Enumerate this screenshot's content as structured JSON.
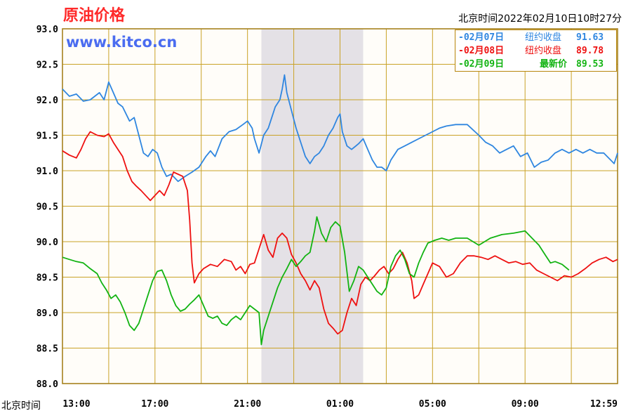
{
  "header": {
    "title": "原油价格",
    "watermark": "www.kitco.cn",
    "timestamp": "北京时间2022年02月10日10时27分"
  },
  "legend": {
    "items": [
      {
        "date": "-02月07日",
        "label": "纽约收盘",
        "value": "91.63",
        "color": "#2f86e0"
      },
      {
        "date": "-02月08日",
        "label": "纽约收盘",
        "value": "89.78",
        "color": "#ee1111"
      },
      {
        "date": "-02月09日",
        "label": "最新价",
        "value": "89.53",
        "color": "#12b312"
      }
    ]
  },
  "chart_data": {
    "type": "line",
    "title": "原油价格",
    "xlabel": "北京时间",
    "ylabel": "",
    "ylim": [
      88.0,
      93.0
    ],
    "y_ticks": [
      "93.0",
      "92.5",
      "92.0",
      "91.5",
      "91.0",
      "90.5",
      "90.0",
      "89.5",
      "89.0",
      "88.5",
      "88.0"
    ],
    "x_ticks": [
      "13:00",
      "17:00",
      "21:00",
      "01:00",
      "05:00",
      "09:00",
      "12:59"
    ],
    "x_range_hours": [
      0,
      24
    ],
    "shaded_band_hours": [
      8.6,
      13.0
    ],
    "grid": true,
    "series": [
      {
        "name": "02月07日 纽约收盘 91.63",
        "color": "#2f86e0",
        "points": [
          [
            0.0,
            92.15
          ],
          [
            0.3,
            92.05
          ],
          [
            0.6,
            92.08
          ],
          [
            0.9,
            91.98
          ],
          [
            1.2,
            92.0
          ],
          [
            1.6,
            92.1
          ],
          [
            1.8,
            92.0
          ],
          [
            2.0,
            92.25
          ],
          [
            2.2,
            92.1
          ],
          [
            2.4,
            91.95
          ],
          [
            2.6,
            91.9
          ],
          [
            2.9,
            91.7
          ],
          [
            3.1,
            91.75
          ],
          [
            3.3,
            91.5
          ],
          [
            3.5,
            91.25
          ],
          [
            3.7,
            91.2
          ],
          [
            3.9,
            91.3
          ],
          [
            4.1,
            91.25
          ],
          [
            4.3,
            91.05
          ],
          [
            4.5,
            90.92
          ],
          [
            4.7,
            90.95
          ],
          [
            5.0,
            90.85
          ],
          [
            5.3,
            90.92
          ],
          [
            5.6,
            90.98
          ],
          [
            5.9,
            91.05
          ],
          [
            6.2,
            91.2
          ],
          [
            6.4,
            91.28
          ],
          [
            6.6,
            91.2
          ],
          [
            6.9,
            91.45
          ],
          [
            7.2,
            91.55
          ],
          [
            7.5,
            91.58
          ],
          [
            7.8,
            91.65
          ],
          [
            8.0,
            91.7
          ],
          [
            8.2,
            91.6
          ],
          [
            8.3,
            91.45
          ],
          [
            8.5,
            91.25
          ],
          [
            8.7,
            91.5
          ],
          [
            8.9,
            91.6
          ],
          [
            9.0,
            91.7
          ],
          [
            9.2,
            91.9
          ],
          [
            9.4,
            92.0
          ],
          [
            9.5,
            92.15
          ],
          [
            9.6,
            92.35
          ],
          [
            9.7,
            92.1
          ],
          [
            9.9,
            91.85
          ],
          [
            10.1,
            91.6
          ],
          [
            10.3,
            91.4
          ],
          [
            10.5,
            91.2
          ],
          [
            10.7,
            91.1
          ],
          [
            10.9,
            91.2
          ],
          [
            11.1,
            91.25
          ],
          [
            11.3,
            91.35
          ],
          [
            11.5,
            91.5
          ],
          [
            11.7,
            91.6
          ],
          [
            11.9,
            91.75
          ],
          [
            12.0,
            91.8
          ],
          [
            12.1,
            91.55
          ],
          [
            12.3,
            91.35
          ],
          [
            12.5,
            91.3
          ],
          [
            12.8,
            91.38
          ],
          [
            13.0,
            91.45
          ],
          [
            13.2,
            91.3
          ],
          [
            13.4,
            91.15
          ],
          [
            13.6,
            91.05
          ],
          [
            13.8,
            91.05
          ],
          [
            14.0,
            91.0
          ],
          [
            14.2,
            91.15
          ],
          [
            14.5,
            91.3
          ],
          [
            14.8,
            91.35
          ],
          [
            15.1,
            91.4
          ],
          [
            15.4,
            91.45
          ],
          [
            15.7,
            91.5
          ],
          [
            16.0,
            91.55
          ],
          [
            16.3,
            91.6
          ],
          [
            16.6,
            91.63
          ],
          [
            17.0,
            91.65
          ],
          [
            17.5,
            91.65
          ],
          [
            18.0,
            91.5
          ],
          [
            18.3,
            91.4
          ],
          [
            18.6,
            91.35
          ],
          [
            18.9,
            91.25
          ],
          [
            19.2,
            91.3
          ],
          [
            19.5,
            91.35
          ],
          [
            19.8,
            91.2
          ],
          [
            20.1,
            91.25
          ],
          [
            20.4,
            91.05
          ],
          [
            20.7,
            91.12
          ],
          [
            21.0,
            91.15
          ],
          [
            21.3,
            91.25
          ],
          [
            21.6,
            91.3
          ],
          [
            21.9,
            91.25
          ],
          [
            22.2,
            91.3
          ],
          [
            22.5,
            91.25
          ],
          [
            22.8,
            91.3
          ],
          [
            23.1,
            91.25
          ],
          [
            23.4,
            91.25
          ],
          [
            23.7,
            91.15
          ],
          [
            23.85,
            91.1
          ],
          [
            24.0,
            91.25
          ]
        ]
      },
      {
        "name": "02月08日 纽约收盘 89.78",
        "color": "#ee1111",
        "points": [
          [
            0.0,
            91.28
          ],
          [
            0.3,
            91.22
          ],
          [
            0.6,
            91.18
          ],
          [
            0.8,
            91.3
          ],
          [
            1.0,
            91.45
          ],
          [
            1.2,
            91.55
          ],
          [
            1.5,
            91.5
          ],
          [
            1.8,
            91.48
          ],
          [
            2.0,
            91.52
          ],
          [
            2.2,
            91.4
          ],
          [
            2.4,
            91.3
          ],
          [
            2.6,
            91.2
          ],
          [
            2.8,
            91.0
          ],
          [
            3.0,
            90.85
          ],
          [
            3.2,
            90.78
          ],
          [
            3.4,
            90.72
          ],
          [
            3.6,
            90.65
          ],
          [
            3.8,
            90.58
          ],
          [
            4.0,
            90.65
          ],
          [
            4.2,
            90.72
          ],
          [
            4.4,
            90.65
          ],
          [
            4.6,
            90.8
          ],
          [
            4.8,
            90.98
          ],
          [
            5.0,
            90.95
          ],
          [
            5.2,
            90.92
          ],
          [
            5.4,
            90.72
          ],
          [
            5.5,
            90.3
          ],
          [
            5.6,
            89.7
          ],
          [
            5.7,
            89.42
          ],
          [
            5.9,
            89.55
          ],
          [
            6.1,
            89.62
          ],
          [
            6.4,
            89.68
          ],
          [
            6.7,
            89.65
          ],
          [
            7.0,
            89.75
          ],
          [
            7.3,
            89.72
          ],
          [
            7.5,
            89.6
          ],
          [
            7.7,
            89.65
          ],
          [
            7.9,
            89.55
          ],
          [
            8.1,
            89.68
          ],
          [
            8.3,
            89.7
          ],
          [
            8.5,
            89.9
          ],
          [
            8.7,
            90.1
          ],
          [
            8.9,
            89.88
          ],
          [
            9.1,
            89.78
          ],
          [
            9.3,
            90.05
          ],
          [
            9.5,
            90.12
          ],
          [
            9.7,
            90.05
          ],
          [
            9.9,
            89.82
          ],
          [
            10.1,
            89.7
          ],
          [
            10.3,
            89.55
          ],
          [
            10.5,
            89.45
          ],
          [
            10.7,
            89.32
          ],
          [
            10.9,
            89.45
          ],
          [
            11.1,
            89.35
          ],
          [
            11.3,
            89.05
          ],
          [
            11.5,
            88.85
          ],
          [
            11.7,
            88.78
          ],
          [
            11.9,
            88.7
          ],
          [
            12.1,
            88.75
          ],
          [
            12.3,
            89.0
          ],
          [
            12.5,
            89.2
          ],
          [
            12.7,
            89.1
          ],
          [
            12.9,
            89.4
          ],
          [
            13.1,
            89.5
          ],
          [
            13.3,
            89.45
          ],
          [
            13.5,
            89.52
          ],
          [
            13.7,
            89.6
          ],
          [
            13.9,
            89.65
          ],
          [
            14.1,
            89.55
          ],
          [
            14.3,
            89.62
          ],
          [
            14.5,
            89.75
          ],
          [
            14.7,
            89.85
          ],
          [
            14.9,
            89.7
          ],
          [
            15.1,
            89.45
          ],
          [
            15.2,
            89.2
          ],
          [
            15.4,
            89.25
          ],
          [
            15.6,
            89.4
          ],
          [
            15.8,
            89.55
          ],
          [
            16.0,
            89.7
          ],
          [
            16.3,
            89.65
          ],
          [
            16.6,
            89.5
          ],
          [
            16.9,
            89.55
          ],
          [
            17.2,
            89.7
          ],
          [
            17.5,
            89.8
          ],
          [
            17.8,
            89.8
          ],
          [
            18.1,
            89.78
          ],
          [
            18.4,
            89.75
          ],
          [
            18.7,
            89.8
          ],
          [
            19.0,
            89.75
          ],
          [
            19.3,
            89.7
          ],
          [
            19.6,
            89.72
          ],
          [
            19.9,
            89.68
          ],
          [
            20.2,
            89.7
          ],
          [
            20.5,
            89.6
          ],
          [
            20.8,
            89.55
          ],
          [
            21.1,
            89.5
          ],
          [
            21.4,
            89.45
          ],
          [
            21.7,
            89.52
          ],
          [
            22.0,
            89.5
          ],
          [
            22.3,
            89.55
          ],
          [
            22.6,
            89.62
          ],
          [
            22.9,
            89.7
          ],
          [
            23.2,
            89.75
          ],
          [
            23.5,
            89.78
          ],
          [
            23.8,
            89.72
          ],
          [
            24.0,
            89.75
          ]
        ]
      },
      {
        "name": "02月09日 最新价 89.53",
        "color": "#12b312",
        "points": [
          [
            0.0,
            89.78
          ],
          [
            0.3,
            89.75
          ],
          [
            0.6,
            89.72
          ],
          [
            0.9,
            89.7
          ],
          [
            1.2,
            89.62
          ],
          [
            1.5,
            89.55
          ],
          [
            1.7,
            89.42
          ],
          [
            1.9,
            89.32
          ],
          [
            2.1,
            89.2
          ],
          [
            2.3,
            89.25
          ],
          [
            2.5,
            89.15
          ],
          [
            2.7,
            89.0
          ],
          [
            2.9,
            88.82
          ],
          [
            3.1,
            88.75
          ],
          [
            3.3,
            88.85
          ],
          [
            3.5,
            89.05
          ],
          [
            3.7,
            89.25
          ],
          [
            3.9,
            89.45
          ],
          [
            4.1,
            89.58
          ],
          [
            4.3,
            89.6
          ],
          [
            4.5,
            89.45
          ],
          [
            4.7,
            89.25
          ],
          [
            4.9,
            89.1
          ],
          [
            5.1,
            89.02
          ],
          [
            5.3,
            89.05
          ],
          [
            5.5,
            89.12
          ],
          [
            5.7,
            89.18
          ],
          [
            5.9,
            89.25
          ],
          [
            6.1,
            89.1
          ],
          [
            6.3,
            88.95
          ],
          [
            6.5,
            88.92
          ],
          [
            6.7,
            88.95
          ],
          [
            6.9,
            88.85
          ],
          [
            7.1,
            88.82
          ],
          [
            7.3,
            88.9
          ],
          [
            7.5,
            88.95
          ],
          [
            7.7,
            88.9
          ],
          [
            7.9,
            89.0
          ],
          [
            8.1,
            89.1
          ],
          [
            8.3,
            89.05
          ],
          [
            8.5,
            89.0
          ],
          [
            8.6,
            88.55
          ],
          [
            8.7,
            88.75
          ],
          [
            8.9,
            88.95
          ],
          [
            9.1,
            89.15
          ],
          [
            9.3,
            89.35
          ],
          [
            9.5,
            89.5
          ],
          [
            9.7,
            89.62
          ],
          [
            9.9,
            89.75
          ],
          [
            10.1,
            89.65
          ],
          [
            10.3,
            89.72
          ],
          [
            10.5,
            89.8
          ],
          [
            10.7,
            89.85
          ],
          [
            10.9,
            90.15
          ],
          [
            11.0,
            90.35
          ],
          [
            11.2,
            90.12
          ],
          [
            11.4,
            90.0
          ],
          [
            11.6,
            90.2
          ],
          [
            11.8,
            90.28
          ],
          [
            12.0,
            90.22
          ],
          [
            12.2,
            89.85
          ],
          [
            12.4,
            89.3
          ],
          [
            12.6,
            89.45
          ],
          [
            12.8,
            89.65
          ],
          [
            13.0,
            89.6
          ],
          [
            13.2,
            89.5
          ],
          [
            13.4,
            89.4
          ],
          [
            13.6,
            89.3
          ],
          [
            13.8,
            89.25
          ],
          [
            14.0,
            89.35
          ],
          [
            14.2,
            89.65
          ],
          [
            14.4,
            89.8
          ],
          [
            14.6,
            89.88
          ],
          [
            14.8,
            89.75
          ],
          [
            15.0,
            89.55
          ],
          [
            15.2,
            89.5
          ],
          [
            15.4,
            89.7
          ],
          [
            15.6,
            89.85
          ],
          [
            15.8,
            89.98
          ],
          [
            16.1,
            90.02
          ],
          [
            16.4,
            90.05
          ],
          [
            16.7,
            90.02
          ],
          [
            17.0,
            90.05
          ],
          [
            17.5,
            90.05
          ],
          [
            18.0,
            89.95
          ],
          [
            18.5,
            90.05
          ],
          [
            19.0,
            90.1
          ],
          [
            19.5,
            90.12
          ],
          [
            20.0,
            90.15
          ],
          [
            20.3,
            90.05
          ],
          [
            20.6,
            89.95
          ],
          [
            20.9,
            89.8
          ],
          [
            21.1,
            89.7
          ],
          [
            21.3,
            89.72
          ],
          [
            21.6,
            89.68
          ],
          [
            21.9,
            89.6
          ]
        ]
      }
    ]
  }
}
